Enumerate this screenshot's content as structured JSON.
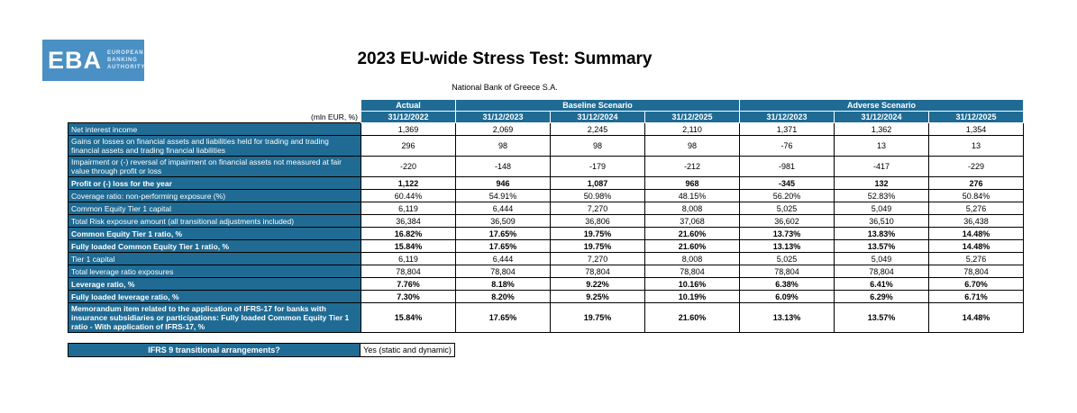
{
  "logo": {
    "abbr": "EBA",
    "lines": [
      "EUROPEAN",
      "BANKING",
      "AUTHORITY"
    ]
  },
  "header": {
    "title": "2023 EU-wide Stress Test: Summary",
    "subtitle": "National Bank of Greece S.A.",
    "unit_label": "(mln EUR, %)"
  },
  "colors": {
    "header_blue": "#1f6b94",
    "logo_blue": "#4a90c4"
  },
  "table": {
    "groups": [
      {
        "label": "Actual",
        "span": 1
      },
      {
        "label": "Baseline Scenario",
        "span": 3
      },
      {
        "label": "Adverse Scenario",
        "span": 3
      }
    ],
    "dates": [
      "31/12/2022",
      "31/12/2023",
      "31/12/2024",
      "31/12/2025",
      "31/12/2023",
      "31/12/2024",
      "31/12/2025"
    ],
    "rows": [
      {
        "label": "Net interest income",
        "bold": false,
        "values": [
          "1,369",
          "2,069",
          "2,245",
          "2,110",
          "1,371",
          "1,362",
          "1,354"
        ]
      },
      {
        "label": "Gains or losses on financial assets and liabilities held for trading and trading financial assets and trading financial liabilities",
        "bold": false,
        "values": [
          "296",
          "98",
          "98",
          "98",
          "-76",
          "13",
          "13"
        ]
      },
      {
        "label": "Impairment or (-) reversal of impairment on financial assets not measured at fair value through profit or loss",
        "bold": false,
        "values": [
          "-220",
          "-148",
          "-179",
          "-212",
          "-981",
          "-417",
          "-229"
        ]
      },
      {
        "label": "Profit or (-) loss for the year",
        "bold": true,
        "values": [
          "1,122",
          "946",
          "1,087",
          "968",
          "-345",
          "132",
          "276"
        ]
      },
      {
        "label": "Coverage ratio: non-performing exposure (%)",
        "bold": false,
        "values": [
          "60.44%",
          "54.91%",
          "50.98%",
          "48.15%",
          "56.20%",
          "52.83%",
          "50.84%"
        ]
      },
      {
        "label": "Common Equity Tier 1 capital",
        "bold": false,
        "values": [
          "6,119",
          "6,444",
          "7,270",
          "8,008",
          "5,025",
          "5,049",
          "5,276"
        ]
      },
      {
        "label": "Total Risk exposure amount (all transitional adjustments included)",
        "bold": false,
        "values": [
          "36,384",
          "36,509",
          "36,806",
          "37,068",
          "36,602",
          "36,510",
          "36,438"
        ]
      },
      {
        "label": "Common Equity Tier 1 ratio, %",
        "bold": true,
        "values": [
          "16.82%",
          "17.65%",
          "19.75%",
          "21.60%",
          "13.73%",
          "13.83%",
          "14.48%"
        ]
      },
      {
        "label": "Fully loaded Common Equity Tier 1 ratio, %",
        "bold": true,
        "values": [
          "15.84%",
          "17.65%",
          "19.75%",
          "21.60%",
          "13.13%",
          "13.57%",
          "14.48%"
        ]
      },
      {
        "label": "Tier 1 capital",
        "bold": false,
        "values": [
          "6,119",
          "6,444",
          "7,270",
          "8,008",
          "5,025",
          "5,049",
          "5,276"
        ]
      },
      {
        "label": "Total leverage ratio exposures",
        "bold": false,
        "values": [
          "78,804",
          "78,804",
          "78,804",
          "78,804",
          "78,804",
          "78,804",
          "78,804"
        ]
      },
      {
        "label": "Leverage ratio, %",
        "bold": true,
        "values": [
          "7.76%",
          "8.18%",
          "9.22%",
          "10.16%",
          "6.38%",
          "6.41%",
          "6.70%"
        ]
      },
      {
        "label": "Fully loaded leverage ratio, %",
        "bold": true,
        "values": [
          "7.30%",
          "8.20%",
          "9.25%",
          "10.19%",
          "6.09%",
          "6.29%",
          "6.71%"
        ]
      },
      {
        "label": "Memorandum item related to the application of IFRS-17 for banks with insurance subsidiaries or participations: Fully loaded Common Equity Tier 1 ratio - With application of IFRS-17, %",
        "bold": true,
        "values": [
          "15.84%",
          "17.65%",
          "19.75%",
          "21.60%",
          "13.13%",
          "13.57%",
          "14.48%"
        ]
      }
    ]
  },
  "ifrs9": {
    "label": "IFRS 9 transitional arrangements?",
    "value": "Yes (static and dynamic)"
  }
}
